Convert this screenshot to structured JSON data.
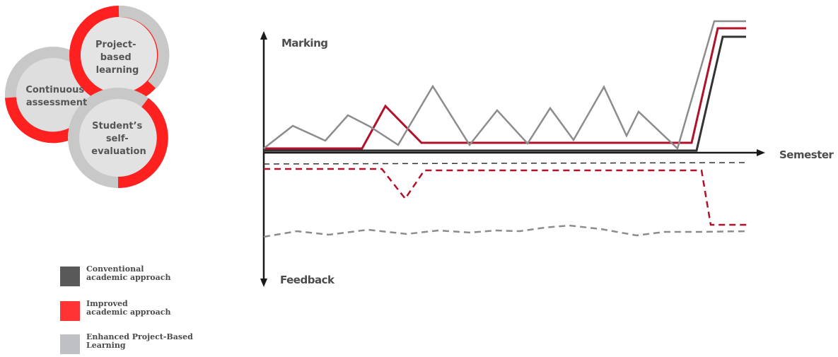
{
  "circles": {
    "top": {
      "lines": [
        "Project-",
        "based",
        "learning"
      ]
    },
    "left": {
      "lines": [
        "Continuous",
        "assessment"
      ]
    },
    "bottom": {
      "lines": [
        "Student’s",
        "self-",
        "evaluation"
      ]
    }
  },
  "axes": {
    "y_top_label": "Marking",
    "y_bottom_label": "Feedback",
    "x_label": "Semester"
  },
  "legend": [
    {
      "label_lines": [
        "Conventional",
        "academic approach"
      ],
      "color": "#595959"
    },
    {
      "label_lines": [
        "Improved",
        "academic approach"
      ],
      "color": "#ff3333"
    },
    {
      "label_lines": [
        "Enhanced Project-Based",
        "Learning"
      ],
      "color": "#bfc0c4"
    }
  ],
  "colors": {
    "conventional": "#333333",
    "improved": "#b0122a",
    "enhanced": "#8c8c8c",
    "ring_red": "#ff2020",
    "ring_gray": "#c8c8c8"
  }
}
